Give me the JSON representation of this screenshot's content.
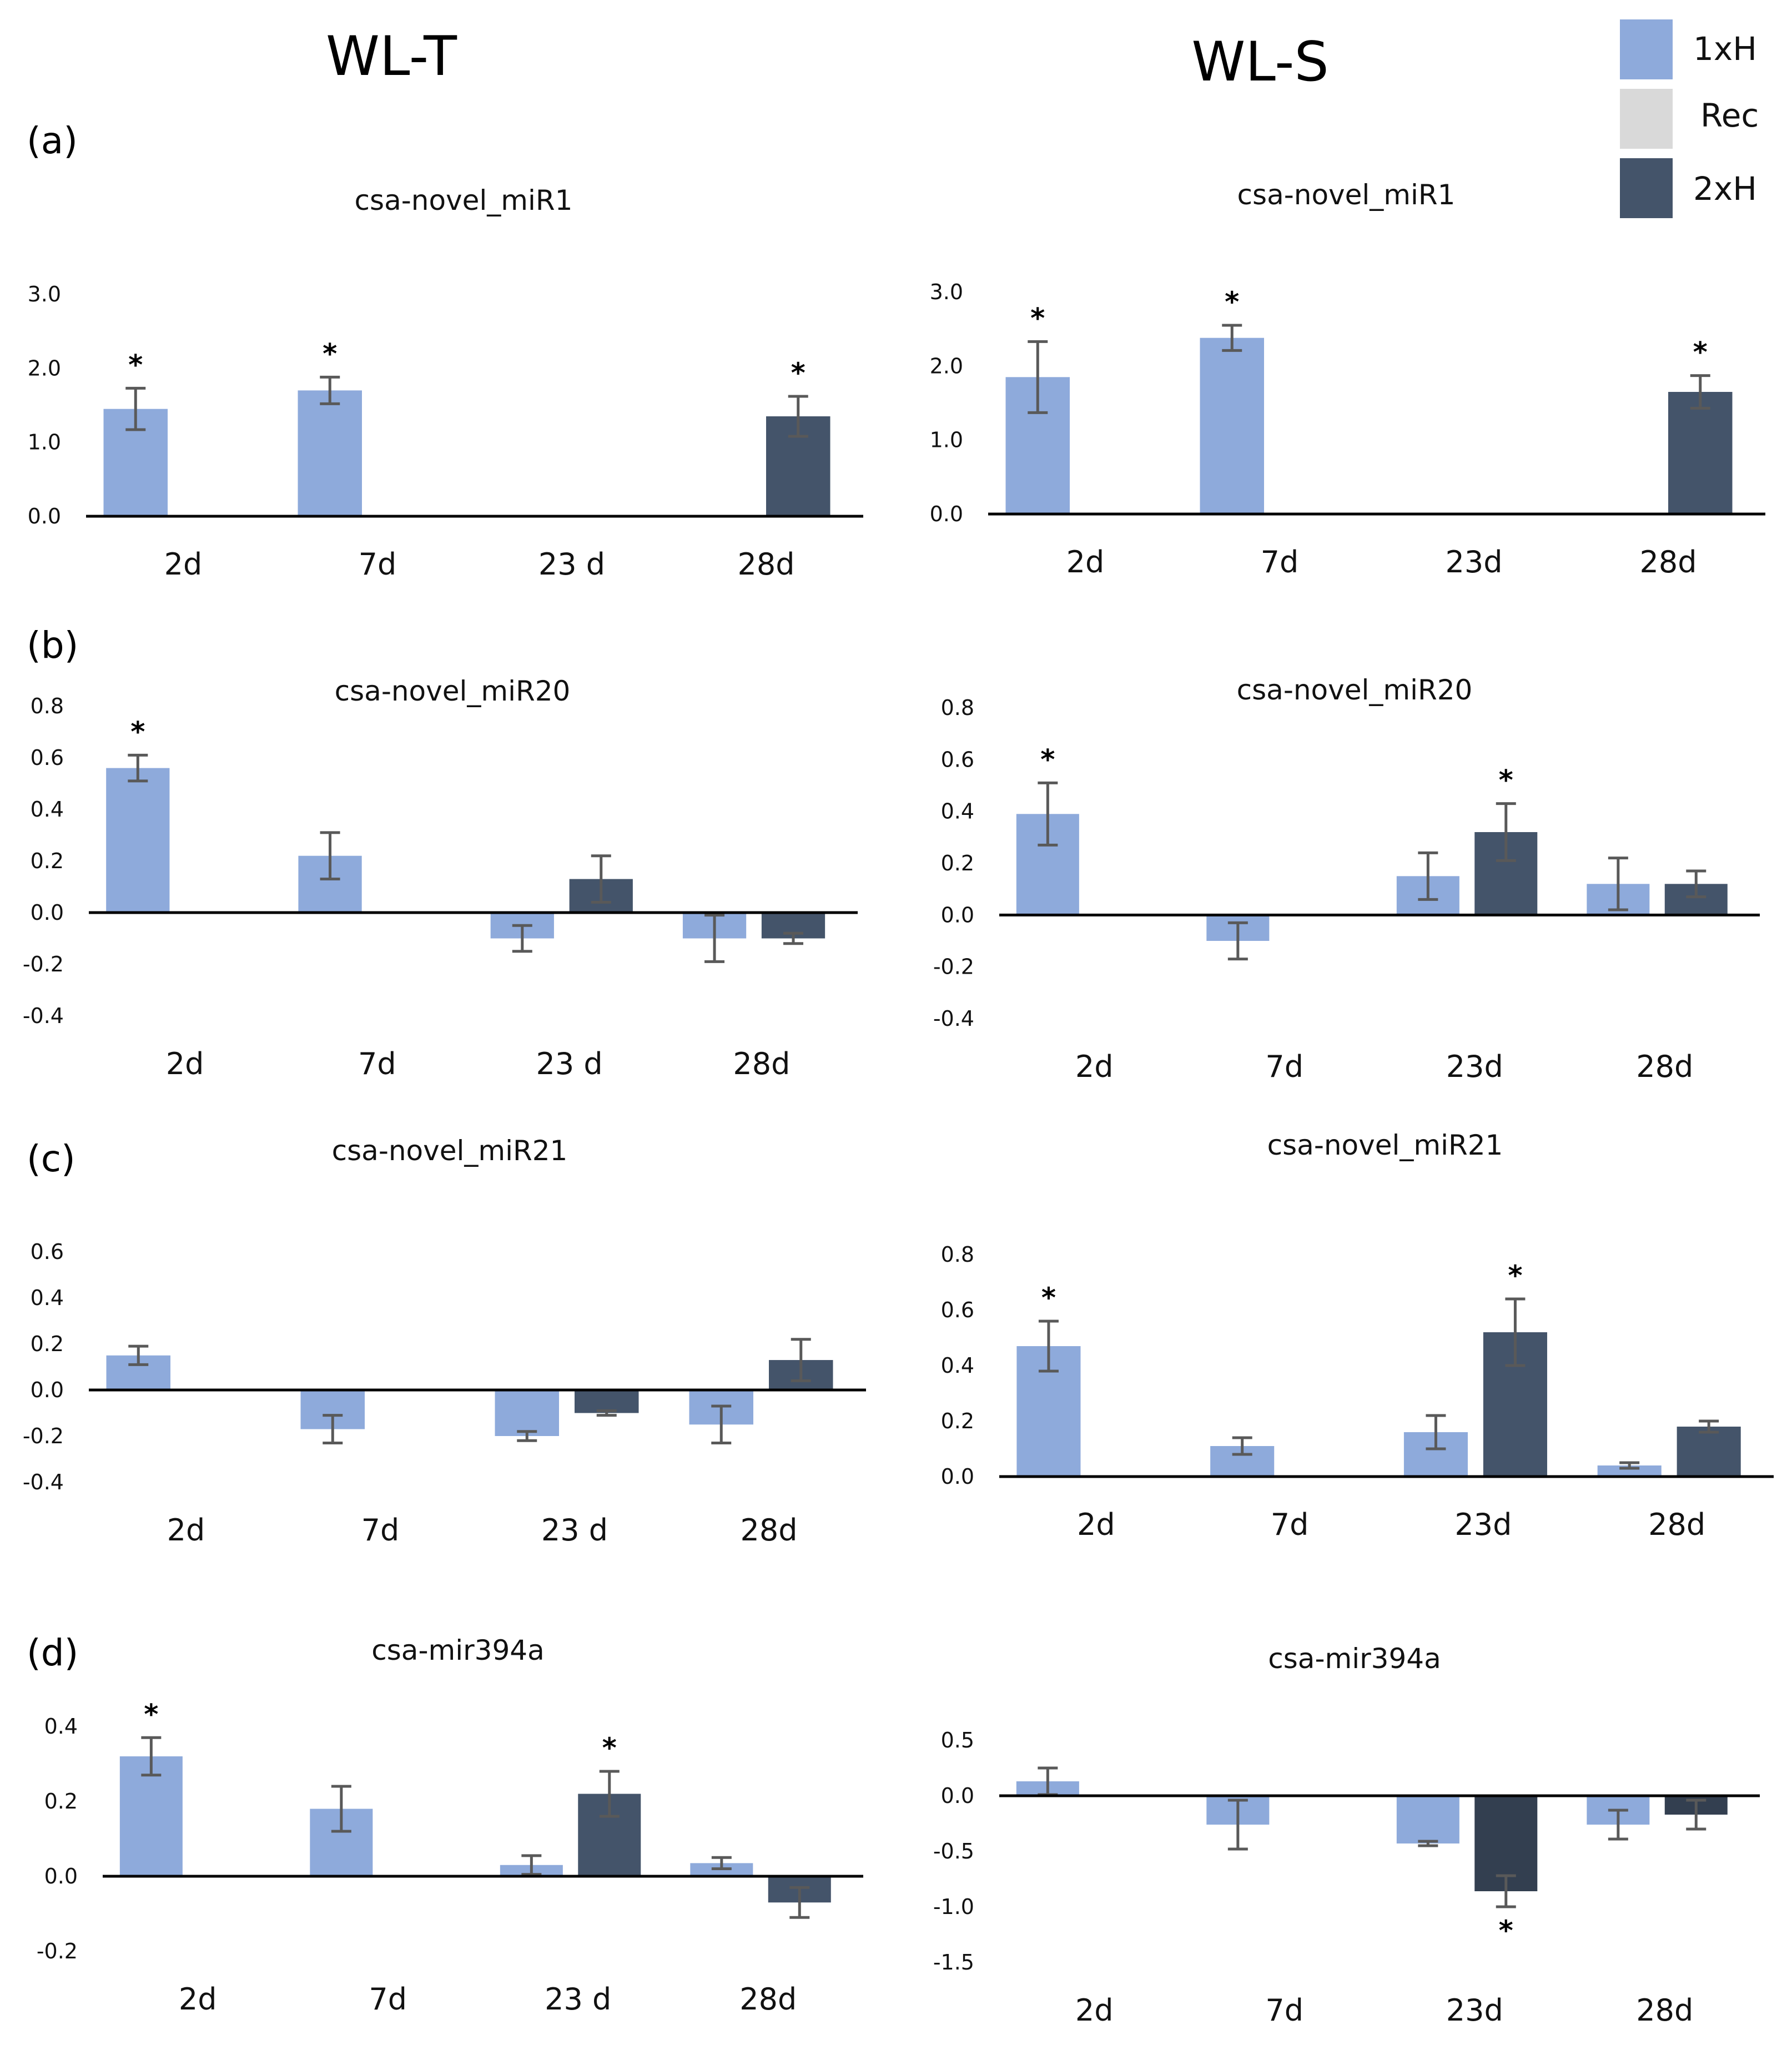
{
  "column_titles": [
    "WL-T",
    "WL-S"
  ],
  "panel_labels": [
    "(a)",
    "(b)",
    "(c)",
    "(d)"
  ],
  "legend": [
    {
      "label": "1xH",
      "color": "#8eaadb"
    },
    {
      "label": "Rec",
      "color": "#d9d9d9"
    },
    {
      "label": "2xH",
      "color": "#44546a"
    }
  ],
  "colors": {
    "h1": "#8eaadb",
    "h2": "#44546a",
    "h2_dark": "#333f50",
    "error": "#595959",
    "axis": "#000000"
  },
  "chart_data": [
    {
      "id": "a-wlt",
      "type": "bar",
      "title": "csa-novel_miR1",
      "categories": [
        "2d",
        "7d",
        "23 d",
        "28d"
      ],
      "ylim": [
        0,
        3
      ],
      "yticks": [
        "0.0",
        "1.0",
        "2.0",
        "3.0"
      ],
      "ytick_values": [
        0,
        1,
        2,
        3
      ],
      "series": [
        {
          "name": "1xH",
          "values": [
            1.45,
            1.7,
            null,
            null
          ],
          "errors": [
            0.28,
            0.18,
            null,
            null
          ],
          "sig": [
            true,
            true,
            false,
            false
          ]
        },
        {
          "name": "2xH",
          "values": [
            null,
            null,
            null,
            1.35
          ],
          "errors": [
            null,
            null,
            null,
            0.27
          ],
          "sig": [
            false,
            false,
            false,
            true
          ]
        }
      ]
    },
    {
      "id": "a-wls",
      "type": "bar",
      "title": "csa-novel_miR1",
      "categories": [
        "2d",
        "7d",
        "23d",
        "28d"
      ],
      "ylim": [
        0,
        3
      ],
      "yticks": [
        "0.0",
        "1.0",
        "2.0",
        "3.0"
      ],
      "ytick_values": [
        0,
        1,
        2,
        3
      ],
      "series": [
        {
          "name": "1xH",
          "values": [
            1.85,
            2.38,
            null,
            null
          ],
          "errors": [
            0.48,
            0.17,
            null,
            null
          ],
          "sig": [
            true,
            true,
            false,
            false
          ]
        },
        {
          "name": "2xH",
          "values": [
            null,
            null,
            null,
            1.65
          ],
          "errors": [
            null,
            null,
            null,
            0.22
          ],
          "sig": [
            false,
            false,
            false,
            true
          ]
        }
      ]
    },
    {
      "id": "b-wlt",
      "type": "bar",
      "title": "csa-novel_miR20",
      "categories": [
        "2d",
        "7d",
        "23 d",
        "28d"
      ],
      "ylim": [
        -0.4,
        0.8
      ],
      "yticks": [
        "-0.4",
        "-0.2",
        "0.0",
        "0.2",
        "0.4",
        "0.6",
        "0.8"
      ],
      "ytick_values": [
        -0.4,
        -0.2,
        0,
        0.2,
        0.4,
        0.6,
        0.8
      ],
      "series": [
        {
          "name": "1xH",
          "values": [
            0.56,
            0.22,
            -0.1,
            -0.1
          ],
          "errors": [
            0.05,
            0.09,
            0.05,
            0.09
          ],
          "sig": [
            true,
            false,
            false,
            false
          ]
        },
        {
          "name": "2xH",
          "values": [
            null,
            null,
            0.13,
            -0.1
          ],
          "errors": [
            null,
            null,
            0.09,
            0.02
          ],
          "sig": [
            false,
            false,
            false,
            false
          ]
        }
      ]
    },
    {
      "id": "b-wls",
      "type": "bar",
      "title": "csa-novel_miR20",
      "categories": [
        "2d",
        "7d",
        "23d",
        "28d"
      ],
      "ylim": [
        -0.4,
        0.8
      ],
      "yticks": [
        "-0.4",
        "-0.2",
        "0.0",
        "0.2",
        "0.4",
        "0.6",
        "0.8"
      ],
      "ytick_values": [
        -0.4,
        -0.2,
        0,
        0.2,
        0.4,
        0.6,
        0.8
      ],
      "series": [
        {
          "name": "1xH",
          "values": [
            0.39,
            -0.1,
            0.15,
            0.12
          ],
          "errors": [
            0.12,
            0.07,
            0.09,
            0.1
          ],
          "sig": [
            true,
            false,
            false,
            false
          ]
        },
        {
          "name": "2xH",
          "values": [
            null,
            null,
            0.32,
            0.12
          ],
          "errors": [
            null,
            null,
            0.11,
            0.05
          ],
          "sig": [
            false,
            false,
            true,
            false
          ]
        }
      ]
    },
    {
      "id": "c-wlt",
      "type": "bar",
      "title": "csa-novel_miR21",
      "categories": [
        "2d",
        "7d",
        "23 d",
        "28d"
      ],
      "ylim": [
        -0.4,
        0.6
      ],
      "yticks": [
        "-0.4",
        "-0.2",
        "0.0",
        "0.2",
        "0.4",
        "0.6"
      ],
      "ytick_values": [
        -0.4,
        -0.2,
        0,
        0.2,
        0.4,
        0.6
      ],
      "series": [
        {
          "name": "1xH",
          "values": [
            0.15,
            -0.17,
            -0.2,
            -0.15
          ],
          "errors": [
            0.04,
            0.06,
            0.02,
            0.08
          ],
          "sig": [
            false,
            false,
            false,
            false
          ]
        },
        {
          "name": "2xH",
          "values": [
            null,
            null,
            -0.1,
            0.13
          ],
          "errors": [
            null,
            null,
            0.01,
            0.09
          ],
          "sig": [
            false,
            false,
            false,
            false
          ]
        }
      ]
    },
    {
      "id": "c-wls",
      "type": "bar",
      "title": "csa-novel_miR21",
      "categories": [
        "2d",
        "7d",
        "23d",
        "28d"
      ],
      "ylim": [
        0,
        0.8
      ],
      "yticks": [
        "0.0",
        "0.2",
        "0.4",
        "0.6",
        "0.8"
      ],
      "ytick_values": [
        0,
        0.2,
        0.4,
        0.6,
        0.8
      ],
      "series": [
        {
          "name": "1xH",
          "values": [
            0.47,
            0.11,
            0.16,
            0.04
          ],
          "errors": [
            0.09,
            0.03,
            0.06,
            0.01
          ],
          "sig": [
            true,
            false,
            false,
            false
          ]
        },
        {
          "name": "2xH",
          "values": [
            null,
            null,
            0.52,
            0.18
          ],
          "errors": [
            null,
            null,
            0.12,
            0.02
          ],
          "sig": [
            false,
            false,
            true,
            false
          ]
        }
      ]
    },
    {
      "id": "d-wlt",
      "type": "bar",
      "title": "csa-mir394a",
      "categories": [
        "2d",
        "7d",
        "23 d",
        "28d"
      ],
      "ylim": [
        -0.2,
        0.4
      ],
      "yticks": [
        "-0.2",
        "0.0",
        "0.2",
        "0.4"
      ],
      "ytick_values": [
        -0.2,
        0,
        0.2,
        0.4
      ],
      "series": [
        {
          "name": "1xH",
          "values": [
            0.32,
            0.18,
            0.03,
            0.035
          ],
          "errors": [
            0.05,
            0.06,
            0.025,
            0.015
          ],
          "sig": [
            true,
            false,
            false,
            false
          ]
        },
        {
          "name": "2xH",
          "values": [
            null,
            null,
            0.22,
            -0.07
          ],
          "errors": [
            null,
            null,
            0.06,
            0.04
          ],
          "sig": [
            false,
            false,
            true,
            false
          ]
        }
      ]
    },
    {
      "id": "d-wls",
      "type": "bar",
      "title": "csa-mir394a",
      "categories": [
        "2d",
        "7d",
        "23d",
        "28d"
      ],
      "ylim": [
        -1.5,
        0.5
      ],
      "yticks": [
        "-1.5",
        "-1.0",
        "-0.5",
        "0.0",
        "0.5"
      ],
      "ytick_values": [
        -1.5,
        -1.0,
        -0.5,
        0,
        0.5
      ],
      "series": [
        {
          "name": "1xH",
          "values": [
            0.13,
            -0.26,
            -0.43,
            -0.26
          ],
          "errors": [
            0.12,
            0.22,
            0.02,
            0.13
          ],
          "sig": [
            false,
            false,
            false,
            false
          ]
        },
        {
          "name": "2xH",
          "values": [
            null,
            null,
            -0.86,
            -0.17
          ],
          "errors": [
            null,
            null,
            0.14,
            0.13
          ],
          "sig": [
            false,
            false,
            true,
            false
          ]
        }
      ]
    }
  ]
}
